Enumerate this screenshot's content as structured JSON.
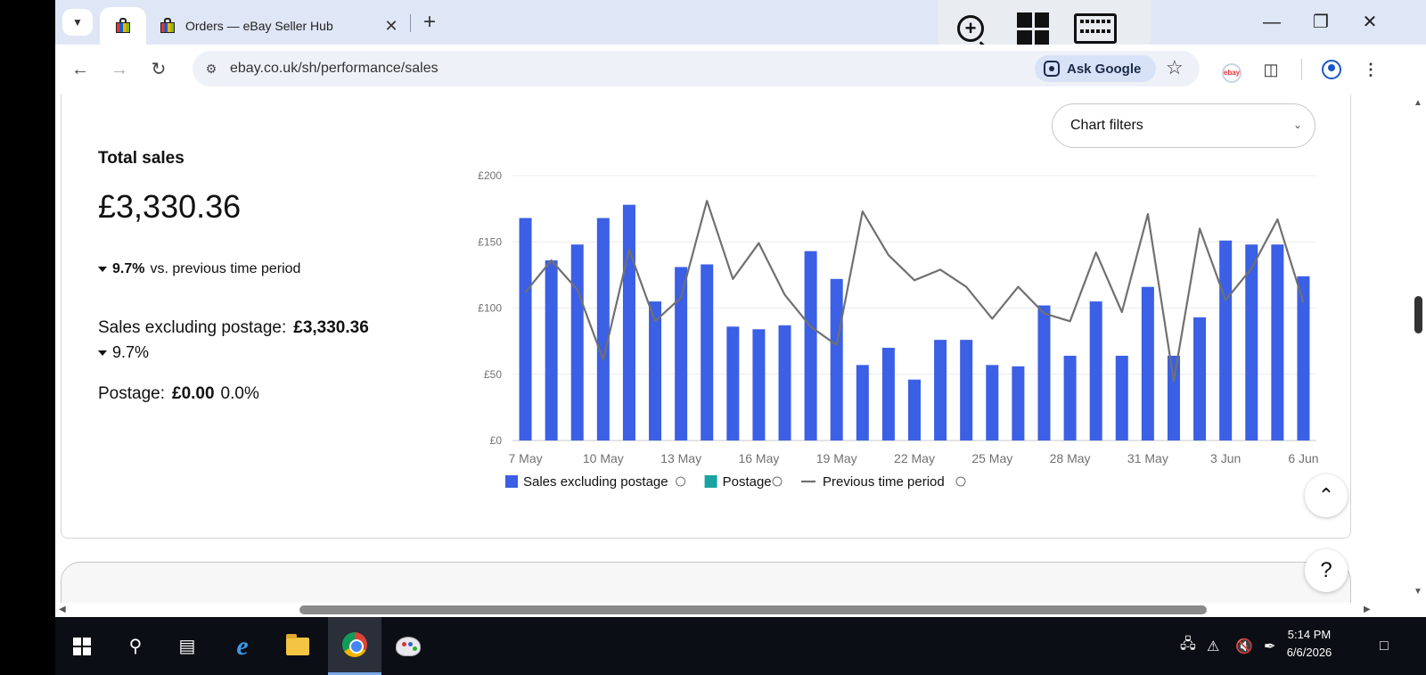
{
  "browser": {
    "tabs": [
      {
        "title": ""
      },
      {
        "title": "Orders — eBay Seller Hub"
      }
    ],
    "url": "ebay.co.uk/sh/performance/sales",
    "ask_google": "Ask Google"
  },
  "summary": {
    "title": "Total sales",
    "total": "£3,330.36",
    "change_pct": "9.7%",
    "change_text": "vs. previous time period",
    "sales_ex_label": "Sales excluding postage:",
    "sales_ex_value": "£3,330.36",
    "sales_ex_change": "9.7%",
    "postage_label": "Postage:",
    "postage_value": "£0.00",
    "postage_change": "0.0%"
  },
  "chart_filters": {
    "label": "Chart filters"
  },
  "chart_data": {
    "type": "bar",
    "title": "",
    "xlabel": "",
    "ylabel": "",
    "ylim": [
      0,
      200
    ],
    "yticks": [
      "£0",
      "£50",
      "£100",
      "£150",
      "£200"
    ],
    "categories": [
      "7 May",
      "8 May",
      "9 May",
      "10 May",
      "11 May",
      "12 May",
      "13 May",
      "14 May",
      "15 May",
      "16 May",
      "17 May",
      "18 May",
      "19 May",
      "20 May",
      "21 May",
      "22 May",
      "23 May",
      "24 May",
      "25 May",
      "26 May",
      "27 May",
      "28 May",
      "29 May",
      "30 May",
      "31 May",
      "1 Jun",
      "2 Jun",
      "3 Jun",
      "4 Jun",
      "5 Jun",
      "6 Jun"
    ],
    "xtick_labels": [
      "7 May",
      "10 May",
      "13 May",
      "16 May",
      "19 May",
      "22 May",
      "25 May",
      "28 May",
      "31 May",
      "3 Jun",
      "6 Jun"
    ],
    "series": [
      {
        "name": "Sales excluding postage",
        "kind": "bar",
        "color": "#3b5fe5",
        "values": [
          168,
          136,
          148,
          168,
          178,
          105,
          131,
          133,
          86,
          84,
          87,
          143,
          122,
          57,
          70,
          46,
          76,
          76,
          57,
          56,
          102,
          64,
          105,
          64,
          116,
          64,
          93,
          151,
          148,
          148,
          124
        ]
      },
      {
        "name": "Postage",
        "kind": "bar",
        "color": "#1aa3a3",
        "values": [
          0,
          0,
          0,
          0,
          0,
          0,
          0,
          0,
          0,
          0,
          0,
          0,
          0,
          0,
          0,
          0,
          0,
          0,
          0,
          0,
          0,
          0,
          0,
          0,
          0,
          0,
          0,
          0,
          0,
          0,
          0
        ]
      },
      {
        "name": "Previous time period",
        "kind": "line",
        "color": "#707070",
        "values": [
          112,
          136,
          114,
          61,
          144,
          90,
          108,
          181,
          122,
          149,
          110,
          86,
          72,
          173,
          140,
          121,
          129,
          116,
          92,
          116,
          96,
          90,
          142,
          97,
          171,
          45,
          160,
          106,
          130,
          167,
          104
        ]
      }
    ],
    "grid": true,
    "legend": "bottom"
  }
}
